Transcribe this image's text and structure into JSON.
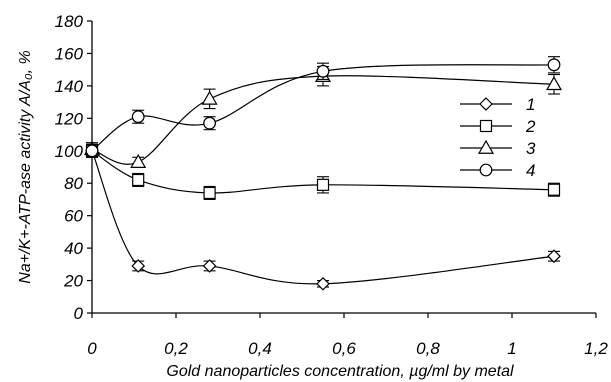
{
  "chart_data": {
    "type": "line",
    "xlabel": "Gold nanoparticles concentration, µg/ml by metal",
    "ylabel": "Na+/K+-ATP-ase activity A/A₀, %",
    "xlim": [
      0,
      1.2
    ],
    "ylim": [
      0,
      180
    ],
    "x_ticks": [
      "0",
      "0,2",
      "0,4",
      "0,6",
      "0,8",
      "1",
      "1,2"
    ],
    "y_ticks": [
      "0",
      "20",
      "40",
      "60",
      "80",
      "100",
      "120",
      "140",
      "160",
      "180"
    ],
    "legend_position": "center-right",
    "grid": false,
    "series": [
      {
        "name": "1",
        "marker": "diamond",
        "x": [
          0,
          0.11,
          0.28,
          0.55,
          1.1
        ],
        "y": [
          100,
          29,
          29,
          18,
          35
        ],
        "err": [
          3,
          3,
          3,
          2,
          3
        ]
      },
      {
        "name": "2",
        "marker": "square",
        "x": [
          0,
          0.11,
          0.28,
          0.55,
          1.1
        ],
        "y": [
          100,
          82,
          74,
          79,
          76
        ],
        "err": [
          4,
          4,
          4,
          5,
          4
        ]
      },
      {
        "name": "3",
        "marker": "triangle",
        "x": [
          0,
          0.11,
          0.28,
          0.55,
          1.1
        ],
        "y": [
          101,
          93,
          132,
          146,
          141
        ],
        "err": [
          4,
          3,
          6,
          6,
          6
        ]
      },
      {
        "name": "4",
        "marker": "circle",
        "x": [
          0,
          0.11,
          0.28,
          0.55,
          1.1
        ],
        "y": [
          100,
          121,
          117,
          149,
          153
        ],
        "err": [
          4,
          4,
          4,
          5,
          5
        ]
      }
    ]
  }
}
